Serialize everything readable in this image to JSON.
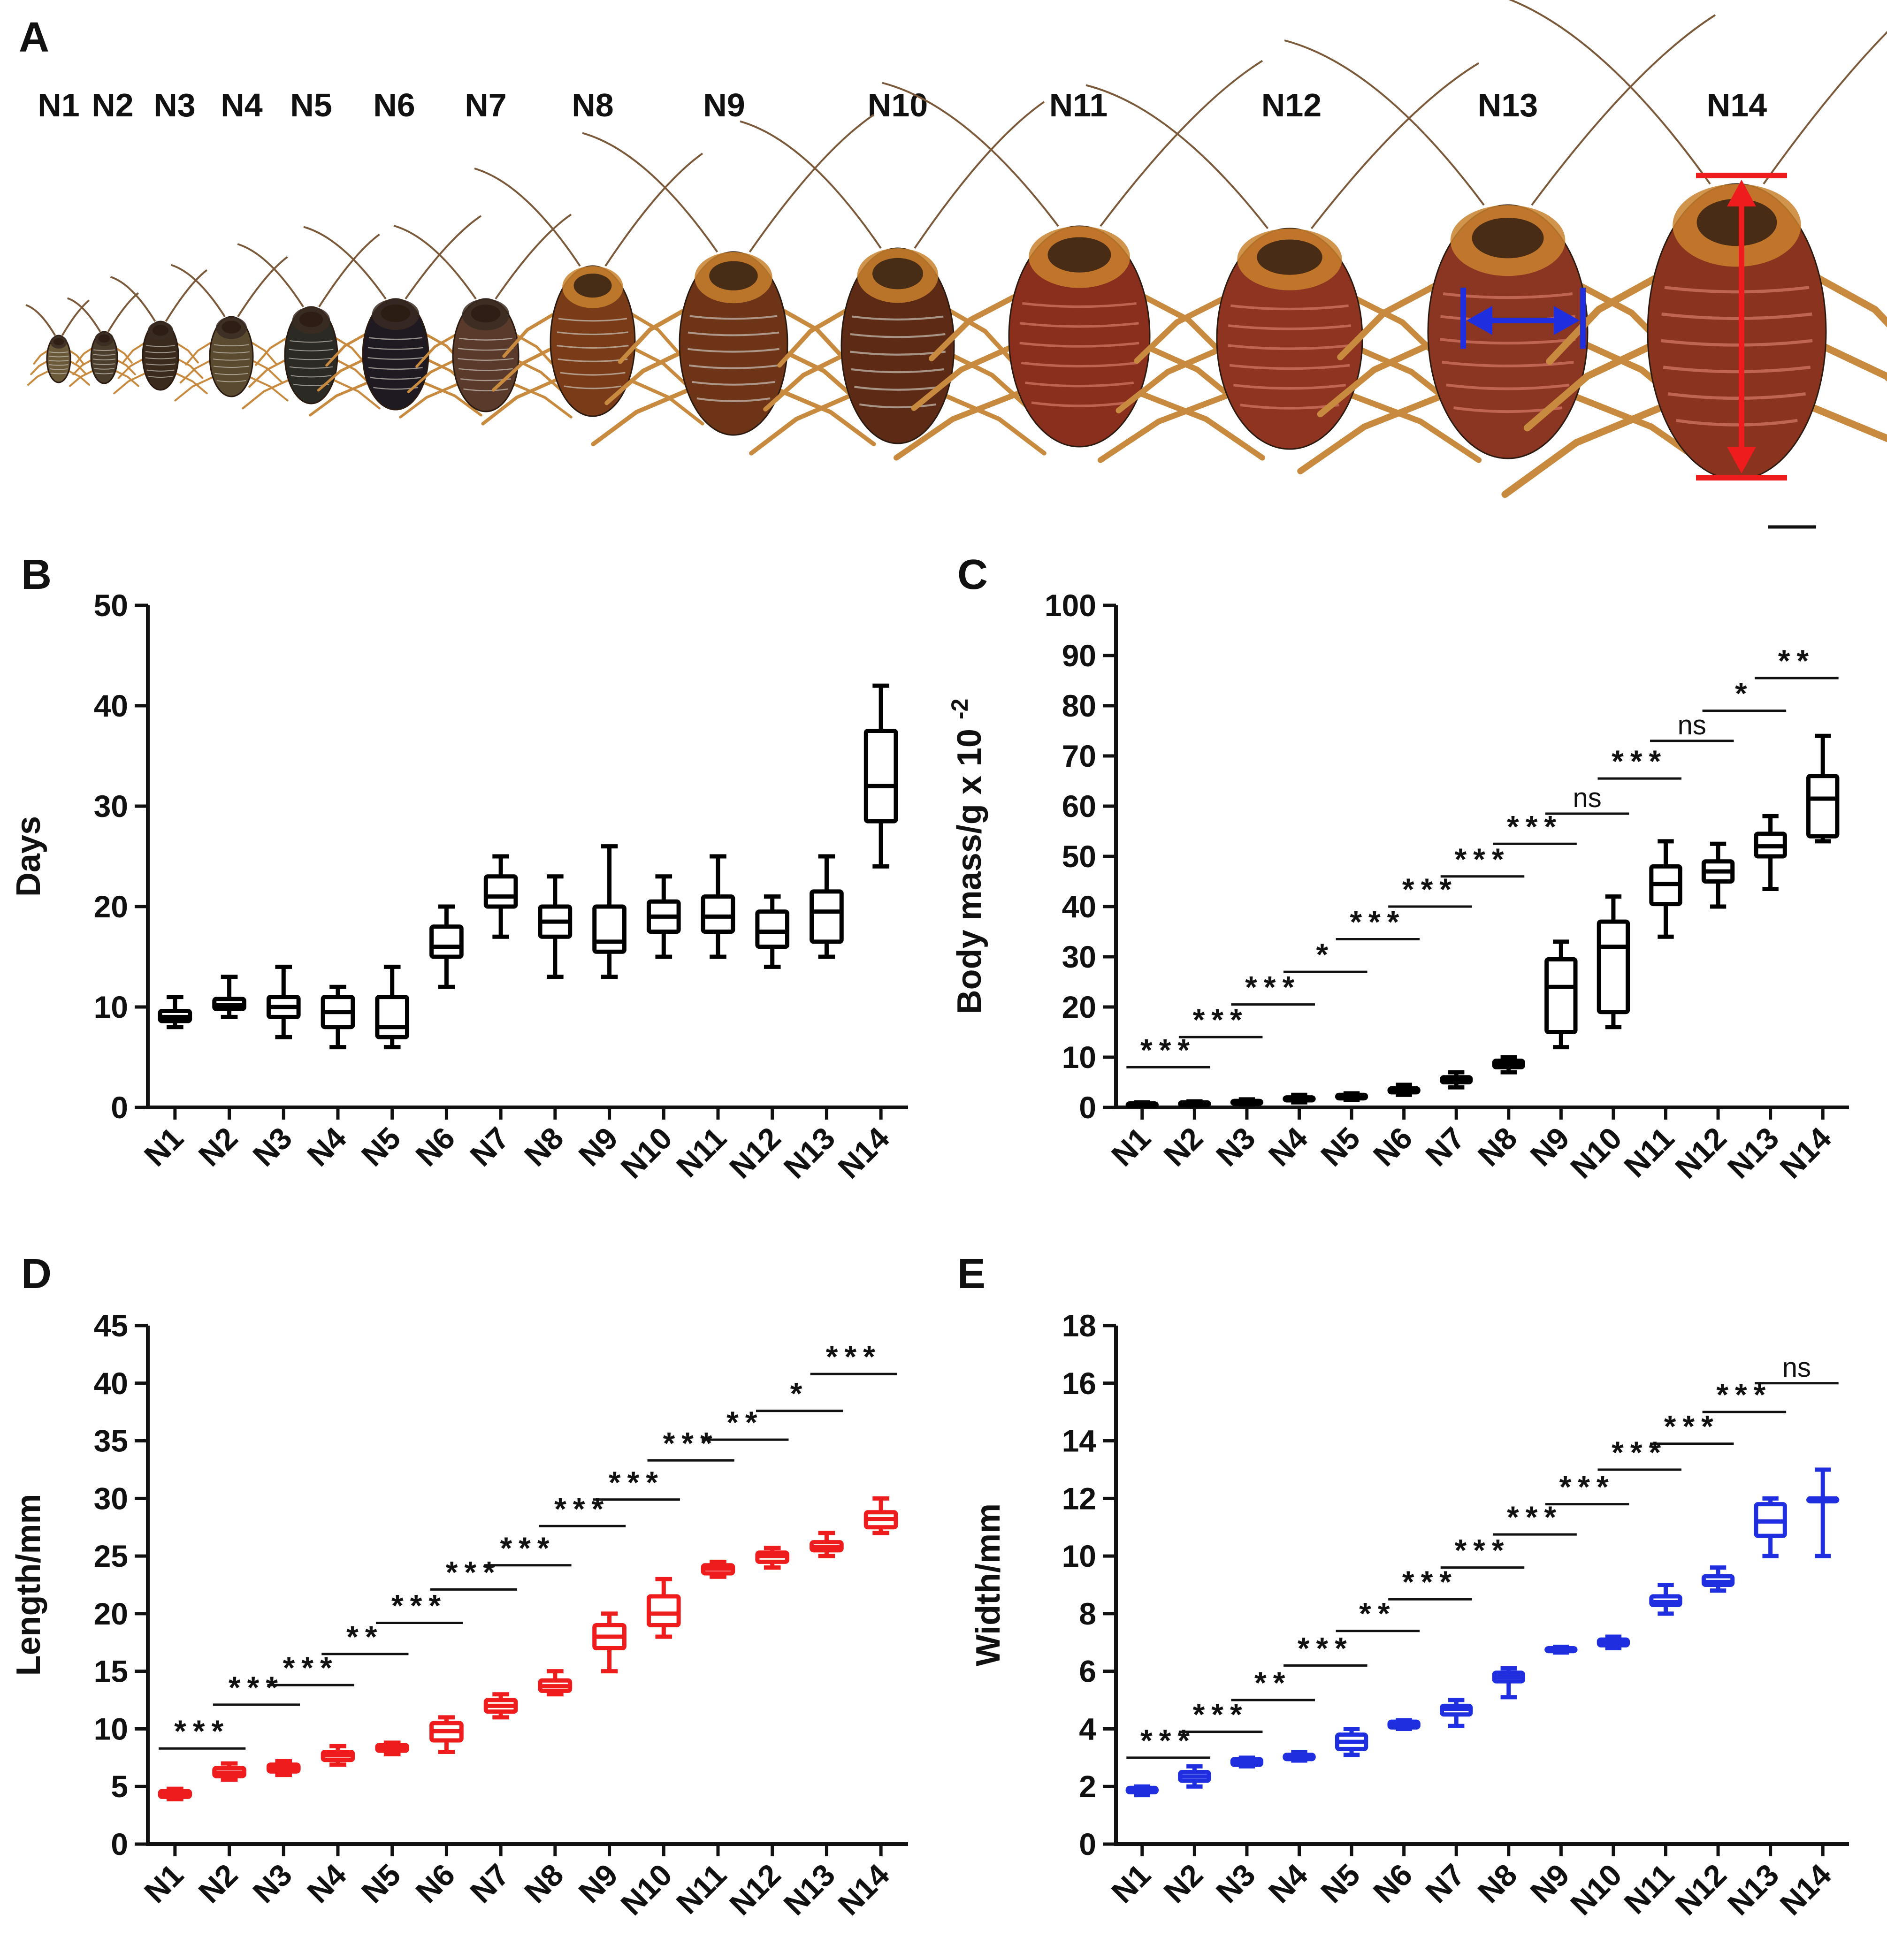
{
  "panel_a": {
    "letter": "A",
    "stages": [
      "N1",
      "N2",
      "N3",
      "N4",
      "N5",
      "N6",
      "N7",
      "N8",
      "N9",
      "N10",
      "N11",
      "N12",
      "N13",
      "N14"
    ],
    "colors": {
      "width_arrow": "#1f2fe0",
      "length_arrow": "#ee1c1c"
    }
  },
  "chart_data": [
    {
      "panel": "B",
      "type": "box",
      "title": "",
      "xlabel": "",
      "ylabel": "Days",
      "ylim": [
        0,
        50
      ],
      "yticks": [
        0,
        10,
        20,
        30,
        40,
        50
      ],
      "categories": [
        "N1",
        "N2",
        "N3",
        "N4",
        "N5",
        "N6",
        "N7",
        "N8",
        "N9",
        "N10",
        "N11",
        "N12",
        "N13",
        "N14"
      ],
      "color": "#000000",
      "boxes": [
        {
          "min": 8,
          "q1": 8.6,
          "median": 9,
          "q3": 9.6,
          "max": 11
        },
        {
          "min": 9,
          "q1": 9.8,
          "median": 10.2,
          "q3": 10.8,
          "max": 13
        },
        {
          "min": 7,
          "q1": 9,
          "median": 10,
          "q3": 11,
          "max": 14
        },
        {
          "min": 6,
          "q1": 8,
          "median": 9.5,
          "q3": 11,
          "max": 12
        },
        {
          "min": 6,
          "q1": 7,
          "median": 8,
          "q3": 11,
          "max": 14
        },
        {
          "min": 12,
          "q1": 15,
          "median": 16,
          "q3": 18,
          "max": 20
        },
        {
          "min": 17,
          "q1": 20,
          "median": 21,
          "q3": 23,
          "max": 25
        },
        {
          "min": 13,
          "q1": 17,
          "median": 18.5,
          "q3": 20,
          "max": 23
        },
        {
          "min": 13,
          "q1": 15.5,
          "median": 16.5,
          "q3": 20,
          "max": 26
        },
        {
          "min": 15,
          "q1": 17.5,
          "median": 19,
          "q3": 20.5,
          "max": 23
        },
        {
          "min": 15,
          "q1": 17.5,
          "median": 19,
          "q3": 21,
          "max": 25
        },
        {
          "min": 14,
          "q1": 16,
          "median": 17.5,
          "q3": 19.5,
          "max": 21
        },
        {
          "min": 15,
          "q1": 16.5,
          "median": 19.5,
          "q3": 21.5,
          "max": 25
        },
        {
          "min": 24,
          "q1": 28.5,
          "median": 32,
          "q3": 37.5,
          "max": 42
        }
      ],
      "significance": []
    },
    {
      "panel": "C",
      "type": "box",
      "title": "",
      "xlabel": "",
      "ylabel": "Body mass/g x 10",
      "ylabel_superscript": "-2",
      "ylim": [
        0,
        100
      ],
      "yticks": [
        0,
        10,
        20,
        30,
        40,
        50,
        60,
        70,
        80,
        90,
        100
      ],
      "categories": [
        "N1",
        "N2",
        "N3",
        "N4",
        "N5",
        "N6",
        "N7",
        "N8",
        "N9",
        "N10",
        "N11",
        "N12",
        "N13",
        "N14"
      ],
      "color": "#000000",
      "boxes": [
        {
          "min": 0.3,
          "q1": 0.5,
          "median": 0.6,
          "q3": 0.8,
          "max": 1
        },
        {
          "min": 0.4,
          "q1": 0.6,
          "median": 0.8,
          "q3": 1,
          "max": 1.2
        },
        {
          "min": 0.6,
          "q1": 0.8,
          "median": 1,
          "q3": 1.3,
          "max": 1.6
        },
        {
          "min": 1,
          "q1": 1.4,
          "median": 1.7,
          "q3": 2,
          "max": 2.5
        },
        {
          "min": 1.5,
          "q1": 1.8,
          "median": 2.1,
          "q3": 2.5,
          "max": 2.8
        },
        {
          "min": 2.5,
          "q1": 3,
          "median": 3.3,
          "q3": 3.8,
          "max": 4.5
        },
        {
          "min": 4,
          "q1": 5,
          "median": 5.5,
          "q3": 6,
          "max": 7
        },
        {
          "min": 7,
          "q1": 8,
          "median": 8.7,
          "q3": 9.3,
          "max": 10
        },
        {
          "min": 12,
          "q1": 15,
          "median": 24,
          "q3": 29.5,
          "max": 33
        },
        {
          "min": 16,
          "q1": 19,
          "median": 32,
          "q3": 37,
          "max": 42
        },
        {
          "min": 34,
          "q1": 40.5,
          "median": 44.5,
          "q3": 48,
          "max": 53
        },
        {
          "min": 40,
          "q1": 45,
          "median": 47,
          "q3": 49,
          "max": 52.5
        },
        {
          "min": 43.5,
          "q1": 50,
          "median": 52,
          "q3": 54.5,
          "max": 58
        },
        {
          "min": 53,
          "q1": 54,
          "median": 61.5,
          "q3": 66,
          "max": 74
        }
      ],
      "significance": [
        {
          "from": 0,
          "to": 1,
          "label": "***",
          "y": 8
        },
        {
          "from": 1,
          "to": 2,
          "label": "***",
          "y": 14
        },
        {
          "from": 2,
          "to": 3,
          "label": "***",
          "y": 20.5
        },
        {
          "from": 3,
          "to": 4,
          "label": "*",
          "y": 27
        },
        {
          "from": 4,
          "to": 5,
          "label": "***",
          "y": 33.5
        },
        {
          "from": 5,
          "to": 6,
          "label": "***",
          "y": 40
        },
        {
          "from": 6,
          "to": 7,
          "label": "***",
          "y": 46
        },
        {
          "from": 7,
          "to": 8,
          "label": "***",
          "y": 52.5
        },
        {
          "from": 8,
          "to": 9,
          "label": "ns",
          "y": 58.5
        },
        {
          "from": 9,
          "to": 10,
          "label": "***",
          "y": 65.5
        },
        {
          "from": 10,
          "to": 11,
          "label": "ns",
          "y": 73
        },
        {
          "from": 11,
          "to": 12,
          "label": "*",
          "y": 79
        },
        {
          "from": 12,
          "to": 13,
          "label": "**",
          "y": 85.5
        }
      ]
    },
    {
      "panel": "D",
      "type": "box",
      "title": "",
      "xlabel": "",
      "ylabel": "Length/mm",
      "ylim": [
        0,
        45
      ],
      "yticks": [
        0,
        5,
        10,
        15,
        20,
        25,
        30,
        35,
        40,
        45
      ],
      "categories": [
        "N1",
        "N2",
        "N3",
        "N4",
        "N5",
        "N6",
        "N7",
        "N8",
        "N9",
        "N10",
        "N11",
        "N12",
        "N13",
        "N14"
      ],
      "color": "#ee1c1c",
      "boxes": [
        {
          "min": 3.9,
          "q1": 4.1,
          "median": 4.3,
          "q3": 4.6,
          "max": 4.8
        },
        {
          "min": 5.6,
          "q1": 5.9,
          "median": 6.2,
          "q3": 6.6,
          "max": 7
        },
        {
          "min": 6,
          "q1": 6.3,
          "median": 6.6,
          "q3": 6.9,
          "max": 7.2
        },
        {
          "min": 6.9,
          "q1": 7.3,
          "median": 7.7,
          "q3": 8,
          "max": 8.5
        },
        {
          "min": 7.8,
          "q1": 8.1,
          "median": 8.3,
          "q3": 8.6,
          "max": 8.8
        },
        {
          "min": 8,
          "q1": 9,
          "median": 9.8,
          "q3": 10.5,
          "max": 11
        },
        {
          "min": 11,
          "q1": 11.5,
          "median": 12,
          "q3": 12.5,
          "max": 13
        },
        {
          "min": 13,
          "q1": 13.3,
          "median": 13.7,
          "q3": 14.2,
          "max": 15
        },
        {
          "min": 15,
          "q1": 17,
          "median": 18,
          "q3": 19,
          "max": 20
        },
        {
          "min": 18,
          "q1": 19,
          "median": 20,
          "q3": 21.5,
          "max": 23
        },
        {
          "min": 23.2,
          "q1": 23.5,
          "median": 23.9,
          "q3": 24.2,
          "max": 24.5
        },
        {
          "min": 24,
          "q1": 24.5,
          "median": 25,
          "q3": 25.3,
          "max": 25.7
        },
        {
          "min": 25,
          "q1": 25.5,
          "median": 25.8,
          "q3": 26.2,
          "max": 27
        },
        {
          "min": 27,
          "q1": 27.5,
          "median": 28.2,
          "q3": 28.8,
          "max": 30
        }
      ],
      "significance": [
        {
          "from": 0,
          "to": 1,
          "label": "***",
          "y": 8.3
        },
        {
          "from": 1,
          "to": 2,
          "label": "***",
          "y": 12.1
        },
        {
          "from": 2,
          "to": 3,
          "label": "***",
          "y": 13.8
        },
        {
          "from": 3,
          "to": 4,
          "label": "**",
          "y": 16.5
        },
        {
          "from": 4,
          "to": 5,
          "label": "***",
          "y": 19.2
        },
        {
          "from": 5,
          "to": 6,
          "label": "***",
          "y": 22.1
        },
        {
          "from": 6,
          "to": 7,
          "label": "***",
          "y": 24.2
        },
        {
          "from": 7,
          "to": 8,
          "label": "***",
          "y": 27.6
        },
        {
          "from": 8,
          "to": 9,
          "label": "***",
          "y": 29.9
        },
        {
          "from": 9,
          "to": 10,
          "label": "***",
          "y": 33.3
        },
        {
          "from": 10,
          "to": 11,
          "label": "**",
          "y": 35.1
        },
        {
          "from": 11,
          "to": 12,
          "label": "*",
          "y": 37.6
        },
        {
          "from": 12,
          "to": 13,
          "label": "***",
          "y": 40.8
        }
      ]
    },
    {
      "panel": "E",
      "type": "box",
      "title": "",
      "xlabel": "",
      "ylabel": "Width/mm",
      "ylim": [
        0,
        18
      ],
      "yticks": [
        0,
        2,
        4,
        6,
        8,
        10,
        12,
        14,
        16,
        18
      ],
      "categories": [
        "N1",
        "N2",
        "N3",
        "N4",
        "N5",
        "N6",
        "N7",
        "N8",
        "N9",
        "N10",
        "N11",
        "N12",
        "N13",
        "N14"
      ],
      "color": "#1f2fe0",
      "boxes": [
        {
          "min": 1.7,
          "q1": 1.8,
          "median": 1.85,
          "q3": 1.95,
          "max": 2
        },
        {
          "min": 2,
          "q1": 2.2,
          "median": 2.35,
          "q3": 2.5,
          "max": 2.7
        },
        {
          "min": 2.7,
          "q1": 2.75,
          "median": 2.85,
          "q3": 2.95,
          "max": 3
        },
        {
          "min": 2.9,
          "q1": 2.95,
          "median": 3.05,
          "q3": 3.1,
          "max": 3.2
        },
        {
          "min": 3.1,
          "q1": 3.3,
          "median": 3.55,
          "q3": 3.8,
          "max": 4
        },
        {
          "min": 4,
          "q1": 4.05,
          "median": 4.15,
          "q3": 4.25,
          "max": 4.3
        },
        {
          "min": 4.1,
          "q1": 4.5,
          "median": 4.7,
          "q3": 4.8,
          "max": 5
        },
        {
          "min": 5.1,
          "q1": 5.65,
          "median": 5.8,
          "q3": 5.95,
          "max": 6.1
        },
        {
          "min": 6.65,
          "q1": 6.7,
          "median": 6.75,
          "q3": 6.8,
          "max": 6.85
        },
        {
          "min": 6.8,
          "q1": 6.9,
          "median": 7,
          "q3": 7.1,
          "max": 7.2
        },
        {
          "min": 8,
          "q1": 8.3,
          "median": 8.4,
          "q3": 8.6,
          "max": 9
        },
        {
          "min": 8.8,
          "q1": 9,
          "median": 9.1,
          "q3": 9.3,
          "max": 9.6
        },
        {
          "min": 10,
          "q1": 10.7,
          "median": 11.2,
          "q3": 11.8,
          "max": 12
        },
        {
          "min": 10,
          "q1": 12,
          "median": 12,
          "q3": 12,
          "max": 13
        }
      ],
      "significance": [
        {
          "from": 0,
          "to": 1,
          "label": "***",
          "y": 3
        },
        {
          "from": 1,
          "to": 2,
          "label": "***",
          "y": 3.9
        },
        {
          "from": 2,
          "to": 3,
          "label": "**",
          "y": 5
        },
        {
          "from": 3,
          "to": 4,
          "label": "***",
          "y": 6.2
        },
        {
          "from": 4,
          "to": 5,
          "label": "**",
          "y": 7.4
        },
        {
          "from": 5,
          "to": 6,
          "label": "***",
          "y": 8.5
        },
        {
          "from": 6,
          "to": 7,
          "label": "***",
          "y": 9.6
        },
        {
          "from": 7,
          "to": 8,
          "label": "***",
          "y": 10.75
        },
        {
          "from": 8,
          "to": 9,
          "label": "***",
          "y": 11.8
        },
        {
          "from": 9,
          "to": 10,
          "label": "***",
          "y": 13
        },
        {
          "from": 10,
          "to": 11,
          "label": "***",
          "y": 13.9
        },
        {
          "from": 11,
          "to": 12,
          "label": "***",
          "y": 15
        },
        {
          "from": 12,
          "to": 13,
          "label": "ns",
          "y": 16
        }
      ]
    }
  ]
}
